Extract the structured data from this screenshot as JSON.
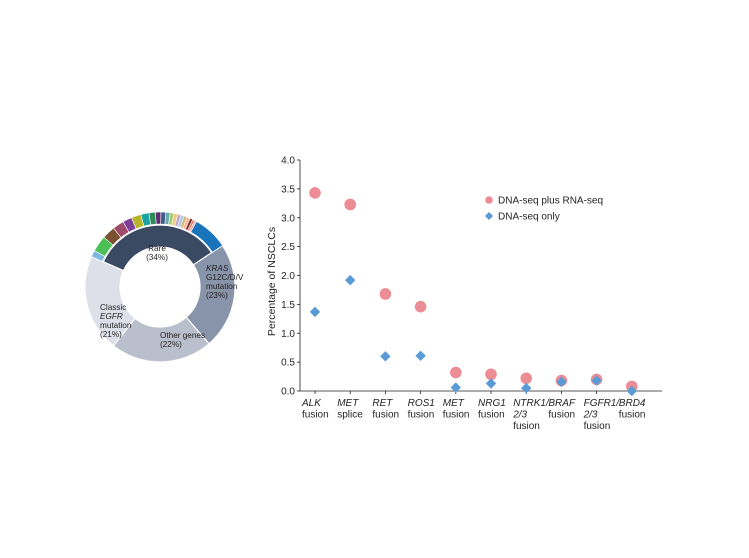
{
  "chart_data": [
    {
      "type": "pie",
      "variant": "donut",
      "slices": [
        {
          "label_lines": [
            "Rare",
            "(34%)"
          ],
          "value": 34,
          "color": "#3a4a63"
        },
        {
          "label_lines": [
            "KRAS",
            "G12C/D/V",
            "mutation",
            "(23%)"
          ],
          "italic_first": true,
          "value": 23,
          "color": "#8894aa"
        },
        {
          "label_lines": [
            "Other genes",
            "(22%)"
          ],
          "value": 22,
          "color": "#b9bfcd"
        },
        {
          "label_lines": [
            "Classic",
            "EGFR",
            "mutation",
            "(21%)"
          ],
          "italic_line": 1,
          "value": 21,
          "color": "#dde0e8"
        }
      ],
      "rare_breakdown": [
        {
          "value": 6.5,
          "color": "#1a74bb"
        },
        {
          "value": 0.4,
          "color": "#f4a6b0"
        },
        {
          "value": 0.4,
          "color": "#e26e54"
        },
        {
          "value": 0.5,
          "color": "#7a1f2b"
        },
        {
          "value": 0.6,
          "color": "#f7b98a"
        },
        {
          "value": 0.6,
          "color": "#d8b37a"
        },
        {
          "value": 0.6,
          "color": "#a7c8e6"
        },
        {
          "value": 0.6,
          "color": "#bfa5c9"
        },
        {
          "value": 0.7,
          "color": "#f2c57c"
        },
        {
          "value": 0.7,
          "color": "#9fcd76"
        },
        {
          "value": 0.8,
          "color": "#6aa7a8"
        },
        {
          "value": 0.9,
          "color": "#3d5a8a"
        },
        {
          "value": 1.0,
          "color": "#5c2c6e"
        },
        {
          "value": 1.2,
          "color": "#2e8b57"
        },
        {
          "value": 1.5,
          "color": "#1aa3a3"
        },
        {
          "value": 1.8,
          "color": "#b5b52a"
        },
        {
          "value": 1.7,
          "color": "#7d3f98"
        },
        {
          "value": 2.1,
          "color": "#a04a6b"
        },
        {
          "value": 2.4,
          "color": "#7a5030"
        },
        {
          "value": 3.0,
          "color": "#4dbf57"
        },
        {
          "value": 1.2,
          "color": "#7eb6e0"
        }
      ]
    },
    {
      "type": "scatter",
      "ylabel": "Percentage of NSCLCs",
      "ylim": [
        0,
        4.0
      ],
      "yticks": [
        "0.0",
        "0.5",
        "1.0",
        "1.5",
        "2.0",
        "2.5",
        "3.0",
        "3.5",
        "4.0"
      ],
      "categories": [
        {
          "gene": "ALK",
          "rest": [
            "fusion"
          ]
        },
        {
          "gene": "MET",
          "rest": [
            "splice"
          ]
        },
        {
          "gene": "RET",
          "rest": [
            "fusion"
          ]
        },
        {
          "gene": "ROS1",
          "rest": [
            "fusion"
          ]
        },
        {
          "gene": "MET",
          "rest": [
            "fusion"
          ]
        },
        {
          "gene": "NRG1",
          "rest": [
            "fusion"
          ]
        },
        {
          "gene": "NTRK1/",
          "gene2": "2/3",
          "rest": [
            "fusion"
          ]
        },
        {
          "gene": "BRAF",
          "rest": [
            "fusion"
          ]
        },
        {
          "gene": "FGFR1/",
          "gene2": "2/3",
          "rest": [
            "fusion"
          ]
        },
        {
          "gene": "BRD4",
          "rest": [
            "fusion"
          ]
        }
      ],
      "series": [
        {
          "name": "DNA-seq plus RNA-seq",
          "marker": "circle",
          "color": "#ec8c94",
          "values": [
            3.43,
            3.23,
            1.68,
            1.46,
            0.32,
            0.29,
            0.22,
            0.18,
            0.2,
            0.08
          ]
        },
        {
          "name": "DNA-seq only",
          "marker": "diamond",
          "color": "#5b9bd5",
          "values": [
            1.37,
            1.92,
            0.6,
            0.61,
            0.06,
            0.13,
            0.05,
            0.16,
            0.18,
            0.0
          ]
        }
      ],
      "legend": "top-right"
    }
  ]
}
